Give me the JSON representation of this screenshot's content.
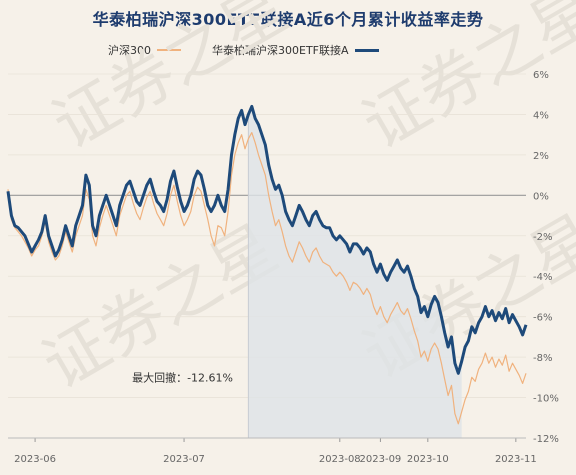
{
  "title": "华泰柏瑞沪深300ETF联接A近6个月累计收益率走势",
  "watermark": "证券之星",
  "colors": {
    "fund": "#1e4a7a",
    "index": "#f0b27e",
    "drawdown_fill": "#dfe3e7",
    "zero_line": "#999999",
    "grid": "#e8e2d8"
  },
  "chart_data": {
    "type": "line",
    "title": "华泰柏瑞沪深300ETF联接A近6个月累计收益率走势",
    "xlabel": "",
    "ylabel": "",
    "x_direction": "reversed",
    "y_axis_side": "right",
    "ylim": [
      -12,
      6
    ],
    "yticks": [
      6,
      4,
      2,
      0,
      -2,
      -4,
      -6,
      -8,
      -10,
      -12
    ],
    "ytick_labels": [
      "6%",
      "4%",
      "2%",
      "0%",
      "-2%",
      "-4%",
      "-6%",
      "-8%",
      "-10%",
      "-12%"
    ],
    "xticks": [
      "2023-06",
      "2023-07",
      "2023-08",
      "2023-09",
      "2023-10",
      "2023-11"
    ],
    "grid": false,
    "legend": "top-center",
    "series": [
      {
        "name": "华泰柏瑞沪深300ETF联接A",
        "values": [
          0.2,
          -1.0,
          -1.5,
          -1.6,
          -1.8,
          -2.0,
          -2.4,
          -2.8,
          -2.5,
          -2.2,
          -1.8,
          -1.0,
          -2.0,
          -2.5,
          -3.0,
          -2.7,
          -2.2,
          -1.5,
          -2.0,
          -2.5,
          -1.5,
          -1.0,
          -0.5,
          1.0,
          0.5,
          -1.5,
          -2.0,
          -1.0,
          -0.5,
          0.0,
          -0.5,
          -1.0,
          -1.5,
          -0.5,
          0.0,
          0.5,
          0.7,
          0.2,
          -0.3,
          -0.5,
          0.0,
          0.5,
          0.8,
          0.2,
          -0.3,
          -0.5,
          -0.8,
          -0.2,
          0.7,
          1.2,
          0.4,
          -0.3,
          -0.8,
          -0.5,
          0.0,
          0.8,
          1.2,
          1.0,
          0.3,
          -0.5,
          -0.8,
          -0.5,
          0.0,
          -0.5,
          -0.8,
          0.3,
          2.0,
          3.0,
          3.8,
          4.2,
          3.5,
          4.0,
          4.4,
          3.8,
          3.5,
          3.0,
          2.5,
          1.5,
          0.8,
          0.3,
          0.5,
          0.0,
          -0.8,
          -1.2,
          -1.5,
          -1.0,
          -0.5,
          -0.8,
          -1.2,
          -1.5,
          -1.0,
          -0.8,
          -1.2,
          -1.5,
          -1.6,
          -1.6,
          -2.0,
          -2.2,
          -2.0,
          -2.2,
          -2.4,
          -2.8,
          -2.4,
          -2.4,
          -2.6,
          -2.9,
          -2.6,
          -2.8,
          -3.4,
          -3.8,
          -3.4,
          -3.9,
          -4.2,
          -3.8,
          -3.5,
          -3.2,
          -3.6,
          -3.8,
          -3.5,
          -4.0,
          -4.6,
          -5.0,
          -5.8,
          -5.5,
          -6.0,
          -5.4,
          -5.0,
          -5.3,
          -6.0,
          -6.8,
          -7.5,
          -7.0,
          -8.3,
          -8.8,
          -8.2,
          -7.5,
          -7.2,
          -6.5,
          -6.8,
          -6.3,
          -6.0,
          -5.5,
          -6.0,
          -5.7,
          -6.2,
          -5.8,
          -6.1,
          -5.6,
          -6.3,
          -5.9,
          -6.2,
          -6.5,
          -6.9,
          -6.4
        ]
      },
      {
        "name": "沪深300",
        "values": [
          0.3,
          -1.2,
          -1.6,
          -1.8,
          -2.0,
          -2.3,
          -2.6,
          -3.0,
          -2.7,
          -2.5,
          -2.0,
          -1.3,
          -2.3,
          -2.8,
          -3.2,
          -3.0,
          -2.5,
          -1.8,
          -2.3,
          -2.8,
          -2.0,
          -1.5,
          -1.0,
          0.3,
          -0.2,
          -2.0,
          -2.5,
          -1.6,
          -1.0,
          -0.5,
          -1.0,
          -1.5,
          -2.0,
          -1.0,
          -0.5,
          0.0,
          0.2,
          -0.4,
          -0.9,
          -1.2,
          -0.6,
          -0.1,
          0.2,
          -0.4,
          -0.9,
          -1.2,
          -1.5,
          -0.9,
          0.0,
          0.5,
          -0.3,
          -1.0,
          -1.5,
          -1.2,
          -0.8,
          0.0,
          0.4,
          0.2,
          -0.5,
          -1.2,
          -2.0,
          -2.5,
          -1.5,
          -1.6,
          -2.0,
          -0.8,
          1.0,
          2.0,
          2.6,
          3.0,
          2.3,
          2.8,
          3.1,
          2.6,
          2.0,
          1.5,
          1.0,
          0.0,
          -0.8,
          -1.5,
          -1.2,
          -1.8,
          -2.5,
          -3.0,
          -3.3,
          -2.8,
          -2.3,
          -2.6,
          -3.0,
          -3.3,
          -2.8,
          -2.6,
          -3.0,
          -3.3,
          -3.4,
          -3.5,
          -3.8,
          -4.0,
          -3.8,
          -4.0,
          -4.3,
          -4.7,
          -4.3,
          -4.4,
          -4.6,
          -4.9,
          -4.6,
          -4.9,
          -5.5,
          -5.9,
          -5.5,
          -6.0,
          -6.3,
          -5.9,
          -5.6,
          -5.3,
          -5.7,
          -5.9,
          -5.6,
          -6.1,
          -6.7,
          -7.2,
          -8.0,
          -7.7,
          -8.2,
          -7.6,
          -7.3,
          -7.6,
          -8.3,
          -9.1,
          -9.9,
          -9.4,
          -10.8,
          -11.3,
          -10.7,
          -10.1,
          -9.7,
          -9.0,
          -9.2,
          -8.6,
          -8.3,
          -7.8,
          -8.3,
          -8.0,
          -8.5,
          -8.1,
          -8.4,
          -7.9,
          -8.7,
          -8.3,
          -8.6,
          -8.9,
          -9.3,
          -8.8
        ]
      }
    ],
    "x_tick_indices": [
      8,
      52,
      98,
      110,
      124,
      150
    ],
    "annotations": [
      {
        "text": "最大回撤：-12.61%",
        "from_index": 71,
        "to_index": 134
      }
    ]
  }
}
